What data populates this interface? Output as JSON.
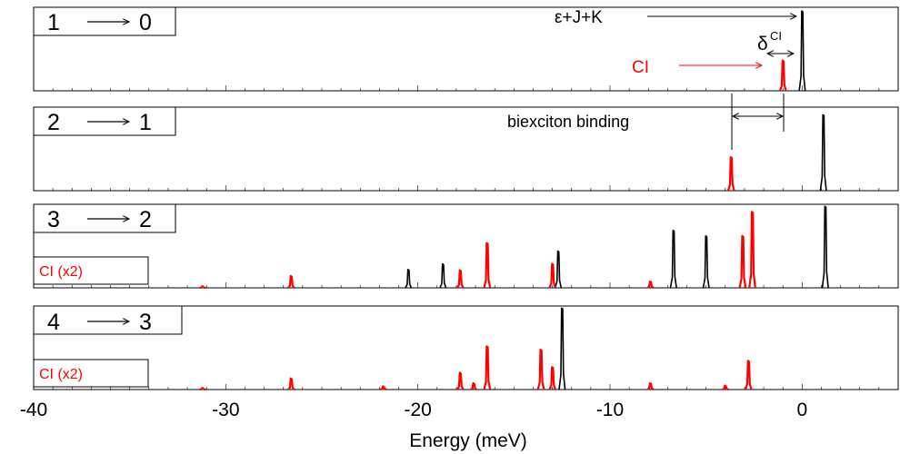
{
  "chart_data": {
    "type": "line",
    "xlabel": "Energy (meV)",
    "xlim": [
      -40,
      5
    ],
    "x_ticks": [
      -40,
      -30,
      -20,
      -10,
      0
    ],
    "x_tick_labels": [
      "-40",
      "-30",
      "-20",
      "-10",
      "0"
    ],
    "colors": {
      "ci": "#ff0000",
      "full": "#000000"
    },
    "panels": [
      {
        "label": "1 → 0",
        "label_left": "1",
        "label_right": "0",
        "ci_box": "",
        "series": [
          {
            "color": "black",
            "peaks": [
              {
                "x": 0.0,
                "h": 1.0
              }
            ]
          },
          {
            "color": "red",
            "peaks": [
              {
                "x": -1.0,
                "h": 0.38
              }
            ]
          }
        ],
        "annotations": {
          "exact_label": "ε+J+K",
          "ci_label": "CI",
          "delta_label": "δ",
          "delta_sup": "CI"
        }
      },
      {
        "label": "2 → 1",
        "label_left": "2",
        "label_right": "1",
        "ci_box": "",
        "series": [
          {
            "color": "black",
            "peaks": [
              {
                "x": 1.1,
                "h": 0.95
              }
            ]
          },
          {
            "color": "red",
            "peaks": [
              {
                "x": -3.7,
                "h": 0.42
              }
            ]
          }
        ],
        "annotations": {
          "binding_label": "biexciton binding"
        }
      },
      {
        "label": "3 → 2",
        "label_left": "3",
        "label_right": "2",
        "ci_box": "CI (x2)",
        "series": [
          {
            "color": "black",
            "peaks": [
              {
                "x": -20.5,
                "h": 0.23
              },
              {
                "x": -18.7,
                "h": 0.3
              },
              {
                "x": -12.7,
                "h": 0.46
              },
              {
                "x": -6.7,
                "h": 0.72
              },
              {
                "x": -5.0,
                "h": 0.65
              },
              {
                "x": 1.2,
                "h": 1.02
              }
            ]
          },
          {
            "color": "red",
            "peaks": [
              {
                "x": -31.2,
                "h": 0.02
              },
              {
                "x": -26.6,
                "h": 0.15
              },
              {
                "x": -17.8,
                "h": 0.22
              },
              {
                "x": -16.4,
                "h": 0.56
              },
              {
                "x": -13.0,
                "h": 0.3
              },
              {
                "x": -7.9,
                "h": 0.08
              },
              {
                "x": -3.1,
                "h": 0.65
              },
              {
                "x": -2.6,
                "h": 0.95
              }
            ]
          }
        ],
        "annotations": {}
      },
      {
        "label": "4 → 3",
        "label_left": "4",
        "label_right": "3",
        "ci_box": "CI (x2)",
        "series": [
          {
            "color": "black",
            "peaks": [
              {
                "x": -12.5,
                "h": 1.02
              }
            ]
          },
          {
            "color": "red",
            "peaks": [
              {
                "x": -31.2,
                "h": 0.02
              },
              {
                "x": -26.6,
                "h": 0.14
              },
              {
                "x": -21.8,
                "h": 0.04
              },
              {
                "x": -17.8,
                "h": 0.21
              },
              {
                "x": -17.1,
                "h": 0.08
              },
              {
                "x": -16.4,
                "h": 0.54
              },
              {
                "x": -13.6,
                "h": 0.5
              },
              {
                "x": -13.0,
                "h": 0.28
              },
              {
                "x": -7.9,
                "h": 0.08
              },
              {
                "x": -4.0,
                "h": 0.05
              },
              {
                "x": -2.8,
                "h": 0.36
              }
            ]
          }
        ],
        "annotations": {}
      }
    ]
  }
}
